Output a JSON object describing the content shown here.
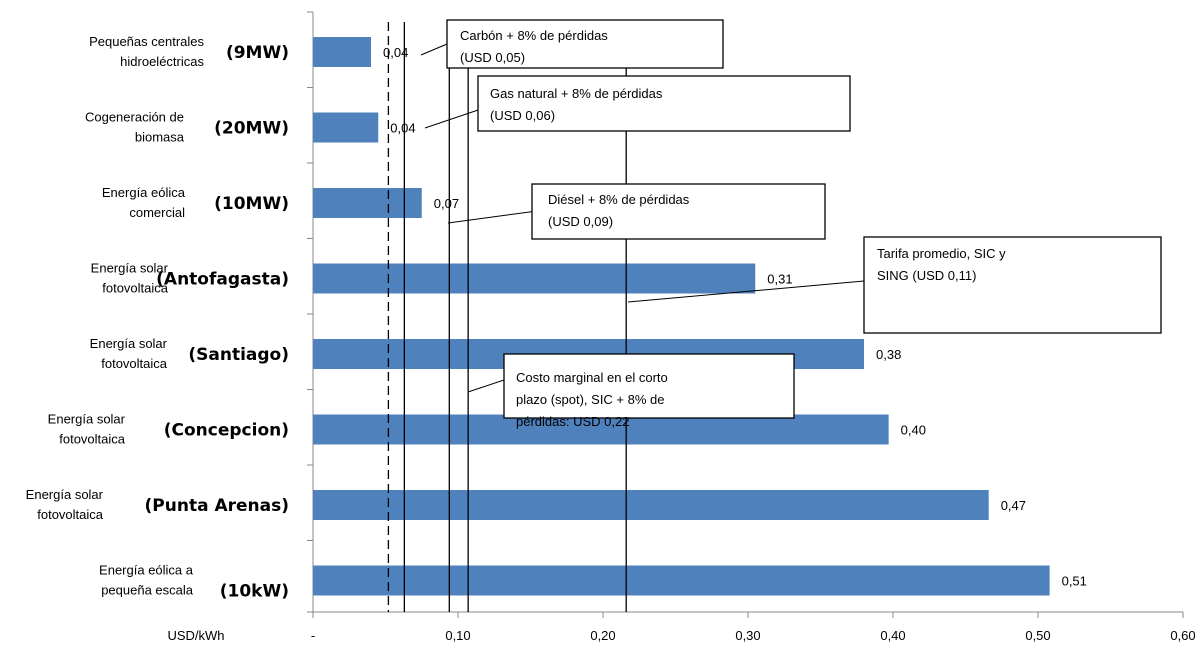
{
  "chart_data": {
    "type": "bar",
    "orientation": "horizontal",
    "x_unit_label": "USD/kWh",
    "xlim": [
      0,
      0.6
    ],
    "x_ticks": [
      {
        "value": 0,
        "label": "-"
      },
      {
        "value": 0.1,
        "label": "0,10"
      },
      {
        "value": 0.2,
        "label": "0,20"
      },
      {
        "value": 0.3,
        "label": "0,30"
      },
      {
        "value": 0.4,
        "label": "0,40"
      },
      {
        "value": 0.5,
        "label": "0,50"
      },
      {
        "value": 0.6,
        "label": "0,60"
      }
    ],
    "bar_color": "#4f81bd",
    "categories": [
      {
        "name": [
          "Pequeñas centrales",
          "hidroeléctricas"
        ],
        "location": "(9MW)",
        "value": 0.04,
        "value_label": "0,04"
      },
      {
        "name": [
          "Cogeneración de",
          "biomasa"
        ],
        "location": "(20MW)",
        "value": 0.045,
        "value_label": "0,04"
      },
      {
        "name": [
          "Energía eólica",
          "comercial"
        ],
        "location": "(10MW)",
        "value": 0.075,
        "value_label": "0,07"
      },
      {
        "name": [
          "Energía solar",
          "fotovoltaica"
        ],
        "location": "(Antofagasta)",
        "value": 0.305,
        "value_label": "0,31"
      },
      {
        "name": [
          "Energía solar",
          "fotovoltaica"
        ],
        "location": "(Santiago)",
        "value": 0.38,
        "value_label": "0,38"
      },
      {
        "name": [
          "Energía solar",
          "fotovoltaica"
        ],
        "location": "(Concepcion)",
        "value": 0.397,
        "value_label": "0,40"
      },
      {
        "name": [
          "Energía solar",
          "fotovoltaica"
        ],
        "location": "(Punta Arenas)",
        "value": 0.466,
        "value_label": "0,47"
      },
      {
        "name": [
          "Energía eólica a",
          "pequeña escala"
        ],
        "location": "(10kW)",
        "value": 0.508,
        "value_label": "0,51"
      }
    ],
    "reference_lines": [
      {
        "value": 0.052,
        "dashed": true,
        "note": [
          "Carbón + 8% de pérdidas",
          "(USD 0,05)"
        ]
      },
      {
        "value": 0.063,
        "dashed": false,
        "note": [
          "Gas natural + 8% de pérdidas",
          "(USD 0,06)"
        ]
      },
      {
        "value": 0.094,
        "dashed": false,
        "note": [
          "Diésel + 8% de pérdidas",
          "(USD 0,09)"
        ]
      },
      {
        "value": 0.107,
        "dashed": false,
        "note": [
          "Tarifa promedio, SIC y",
          "SING (USD 0,11)"
        ]
      },
      {
        "value": 0.216,
        "dashed": false,
        "note": [
          "Costo marginal en el corto",
          "plazo (spot), SIC + 8% de",
          "pérdidas: USD 0,22"
        ]
      }
    ]
  }
}
